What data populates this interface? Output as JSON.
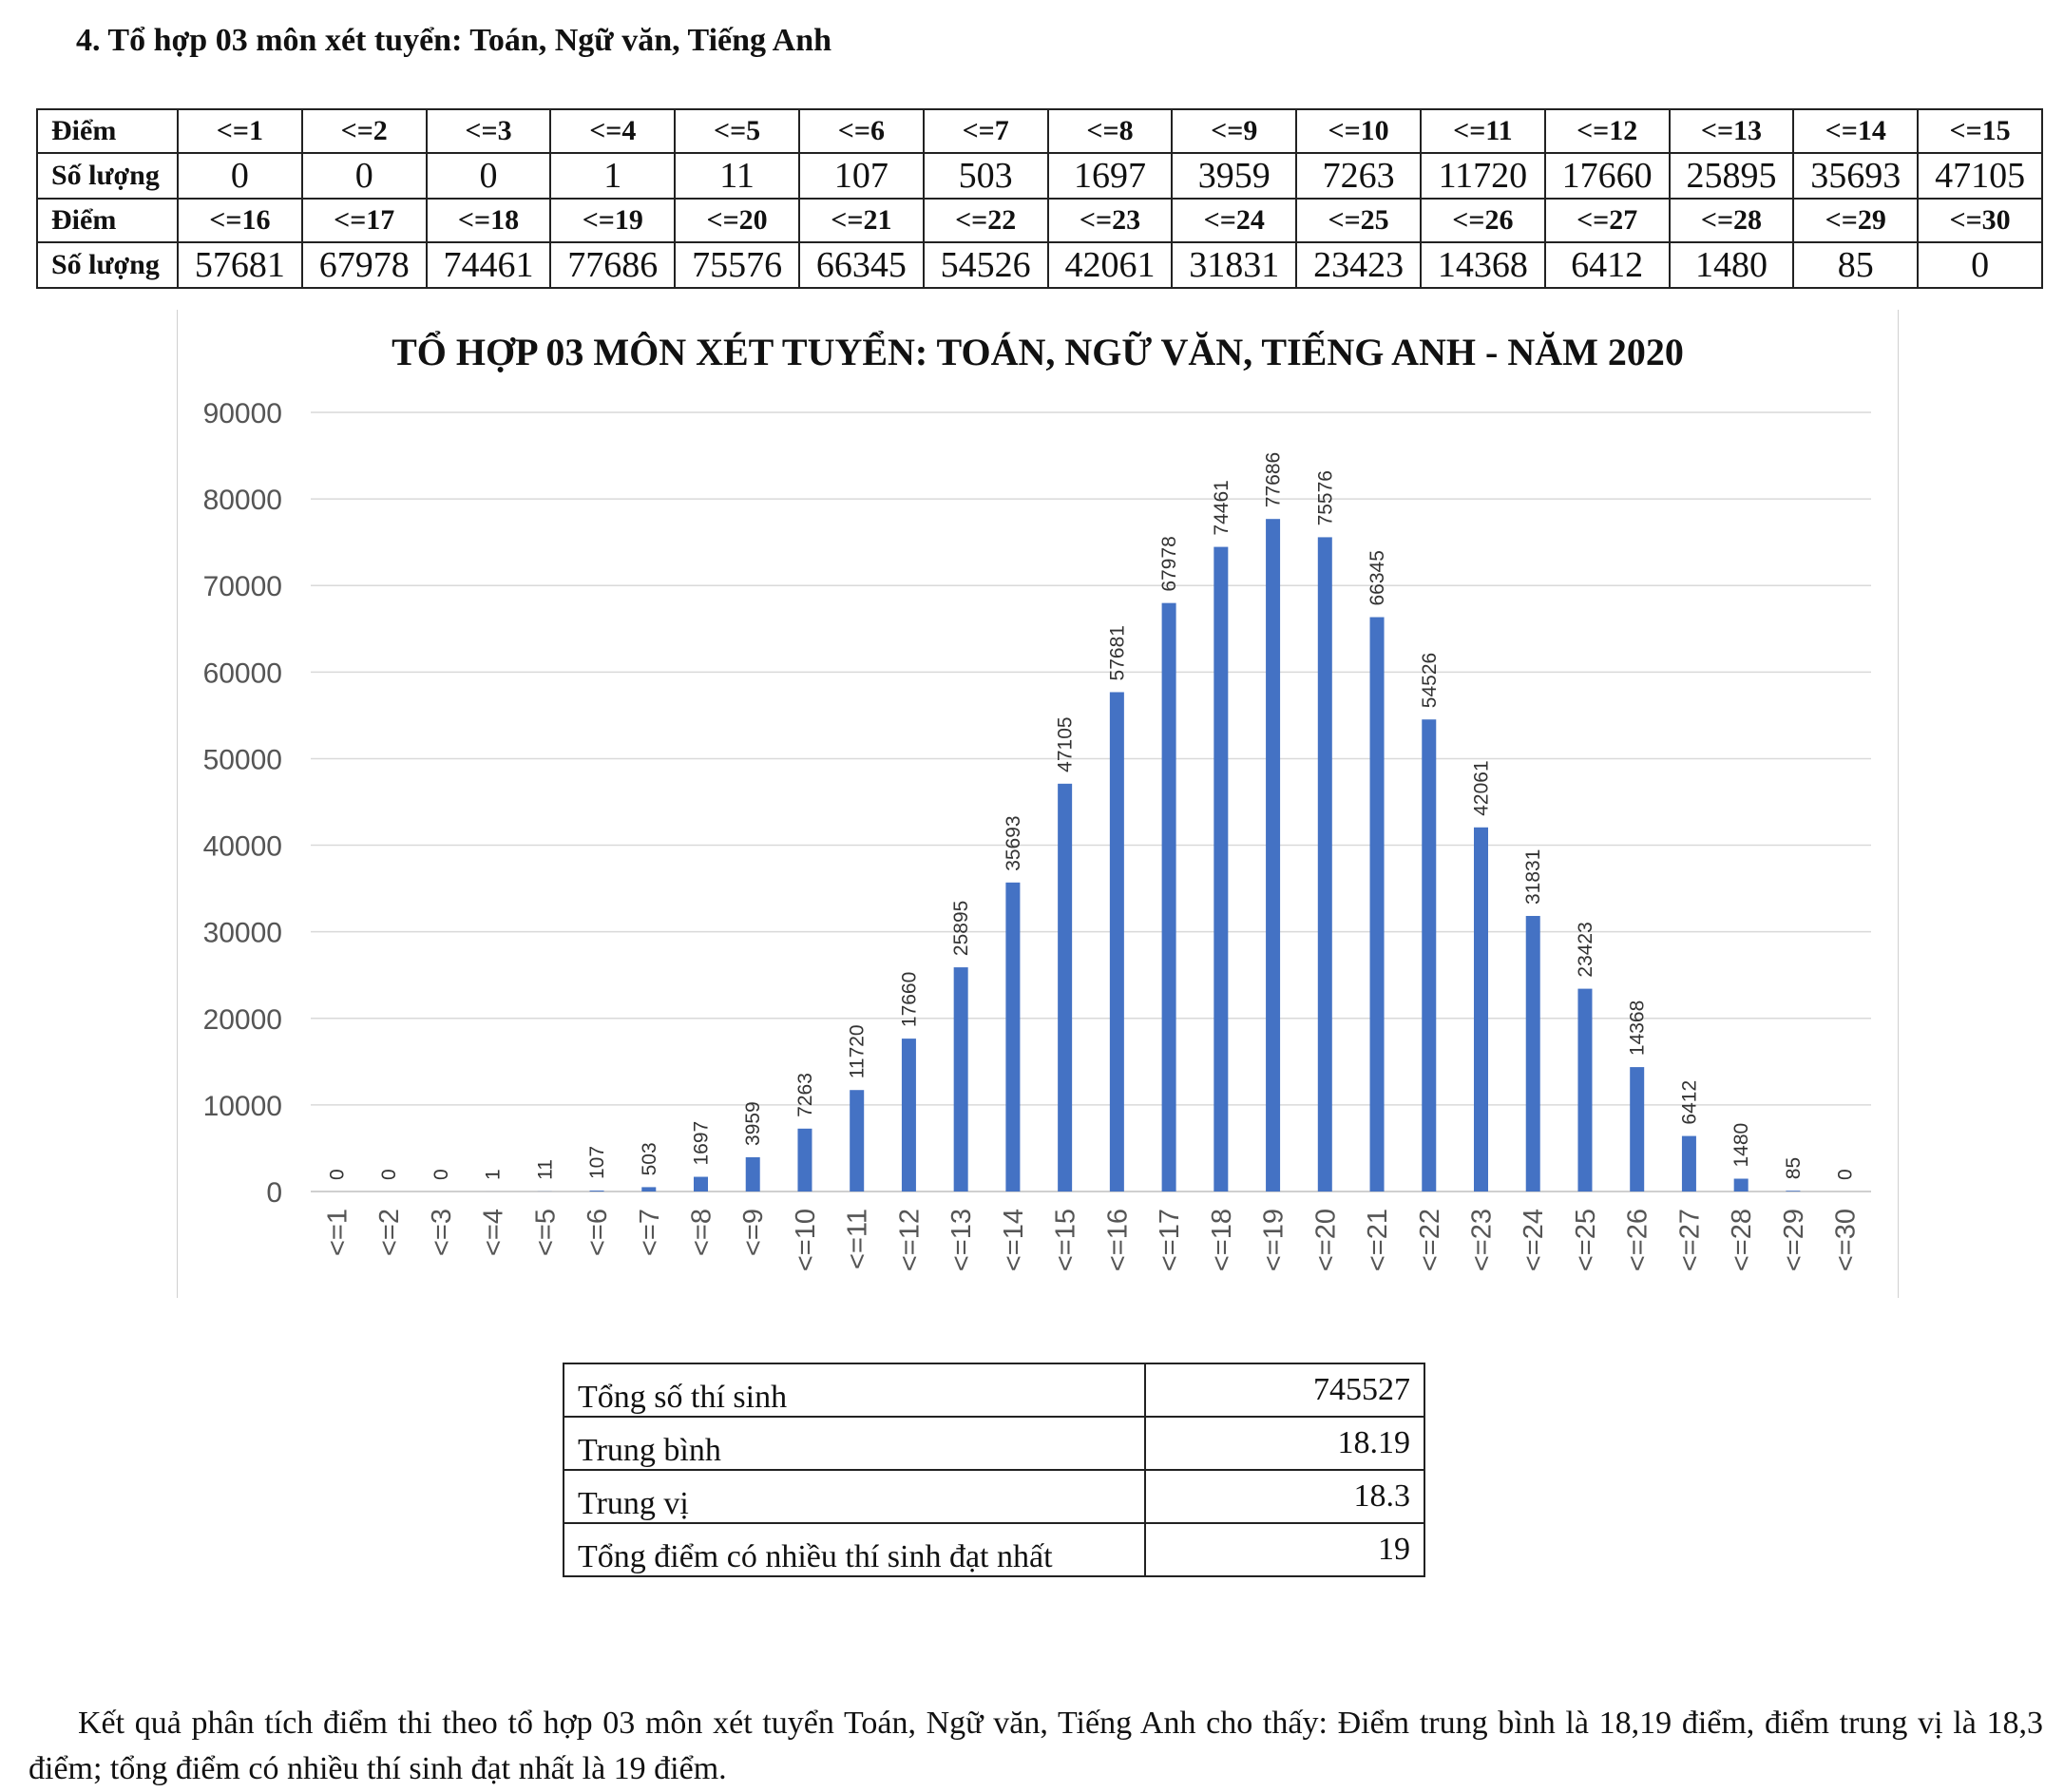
{
  "heading": "4. Tổ hợp 03 môn xét tuyển: Toán, Ngữ văn, Tiếng Anh",
  "table": {
    "label_diem": "Điểm",
    "label_so_luong": "Số lượng",
    "row1_diem": [
      "<=1",
      "<=2",
      "<=3",
      "<=4",
      "<=5",
      "<=6",
      "<=7",
      "<=8",
      "<=9",
      "<=10",
      "<=11",
      "<=12",
      "<=13",
      "<=14",
      "<=15"
    ],
    "row1_so_luong": [
      "0",
      "0",
      "0",
      "1",
      "11",
      "107",
      "503",
      "1697",
      "3959",
      "7263",
      "11720",
      "17660",
      "25895",
      "35693",
      "47105"
    ],
    "row2_diem": [
      "<=16",
      "<=17",
      "<=18",
      "<=19",
      "<=20",
      "<=21",
      "<=22",
      "<=23",
      "<=24",
      "<=25",
      "<=26",
      "<=27",
      "<=28",
      "<=29",
      "<=30"
    ],
    "row2_so_luong": [
      "57681",
      "67978",
      "74461",
      "77686",
      "75576",
      "66345",
      "54526",
      "42061",
      "31831",
      "23423",
      "14368",
      "6412",
      "1480",
      "85",
      "0"
    ]
  },
  "chart_data": {
    "type": "bar",
    "title": "TỔ HỢP 03 MÔN XÉT TUYỂN: TOÁN, NGỮ VĂN, TIẾNG ANH - NĂM 2020",
    "categories": [
      "<=1",
      "<=2",
      "<=3",
      "<=4",
      "<=5",
      "<=6",
      "<=7",
      "<=8",
      "<=9",
      "<=10",
      "<=11",
      "<=12",
      "<=13",
      "<=14",
      "<=15",
      "<=16",
      "<=17",
      "<=18",
      "<=19",
      "<=20",
      "<=21",
      "<=22",
      "<=23",
      "<=24",
      "<=25",
      "<=26",
      "<=27",
      "<=28",
      "<=29",
      "<=30"
    ],
    "values": [
      0,
      0,
      0,
      1,
      11,
      107,
      503,
      1697,
      3959,
      7263,
      11720,
      17660,
      25895,
      35693,
      47105,
      57681,
      67978,
      74461,
      77686,
      75576,
      66345,
      54526,
      42061,
      31831,
      23423,
      14368,
      6412,
      1480,
      85,
      0
    ],
    "yticks": [
      0,
      10000,
      20000,
      30000,
      40000,
      50000,
      60000,
      70000,
      80000,
      90000
    ],
    "ylim": [
      0,
      90000
    ],
    "xlabel": "",
    "ylabel": "",
    "grid": true,
    "bar_color": "#4472c4"
  },
  "stats": [
    {
      "label": "Tổng số thí sinh",
      "value": "745527"
    },
    {
      "label": "Trung bình",
      "value": "18.19"
    },
    {
      "label": "Trung vị",
      "value": "18.3"
    },
    {
      "label": "Tổng điểm có nhiều thí sinh đạt nhất",
      "value": "19"
    }
  ],
  "analysis": "Kết quả phân tích điểm thi theo tổ hợp 03 môn xét tuyển Toán, Ngữ văn, Tiếng Anh cho thấy: Điểm trung bình là 18,19 điểm, điểm trung vị là 18,3 điểm; tổng điểm có nhiều thí sinh đạt nhất là 19 điểm."
}
